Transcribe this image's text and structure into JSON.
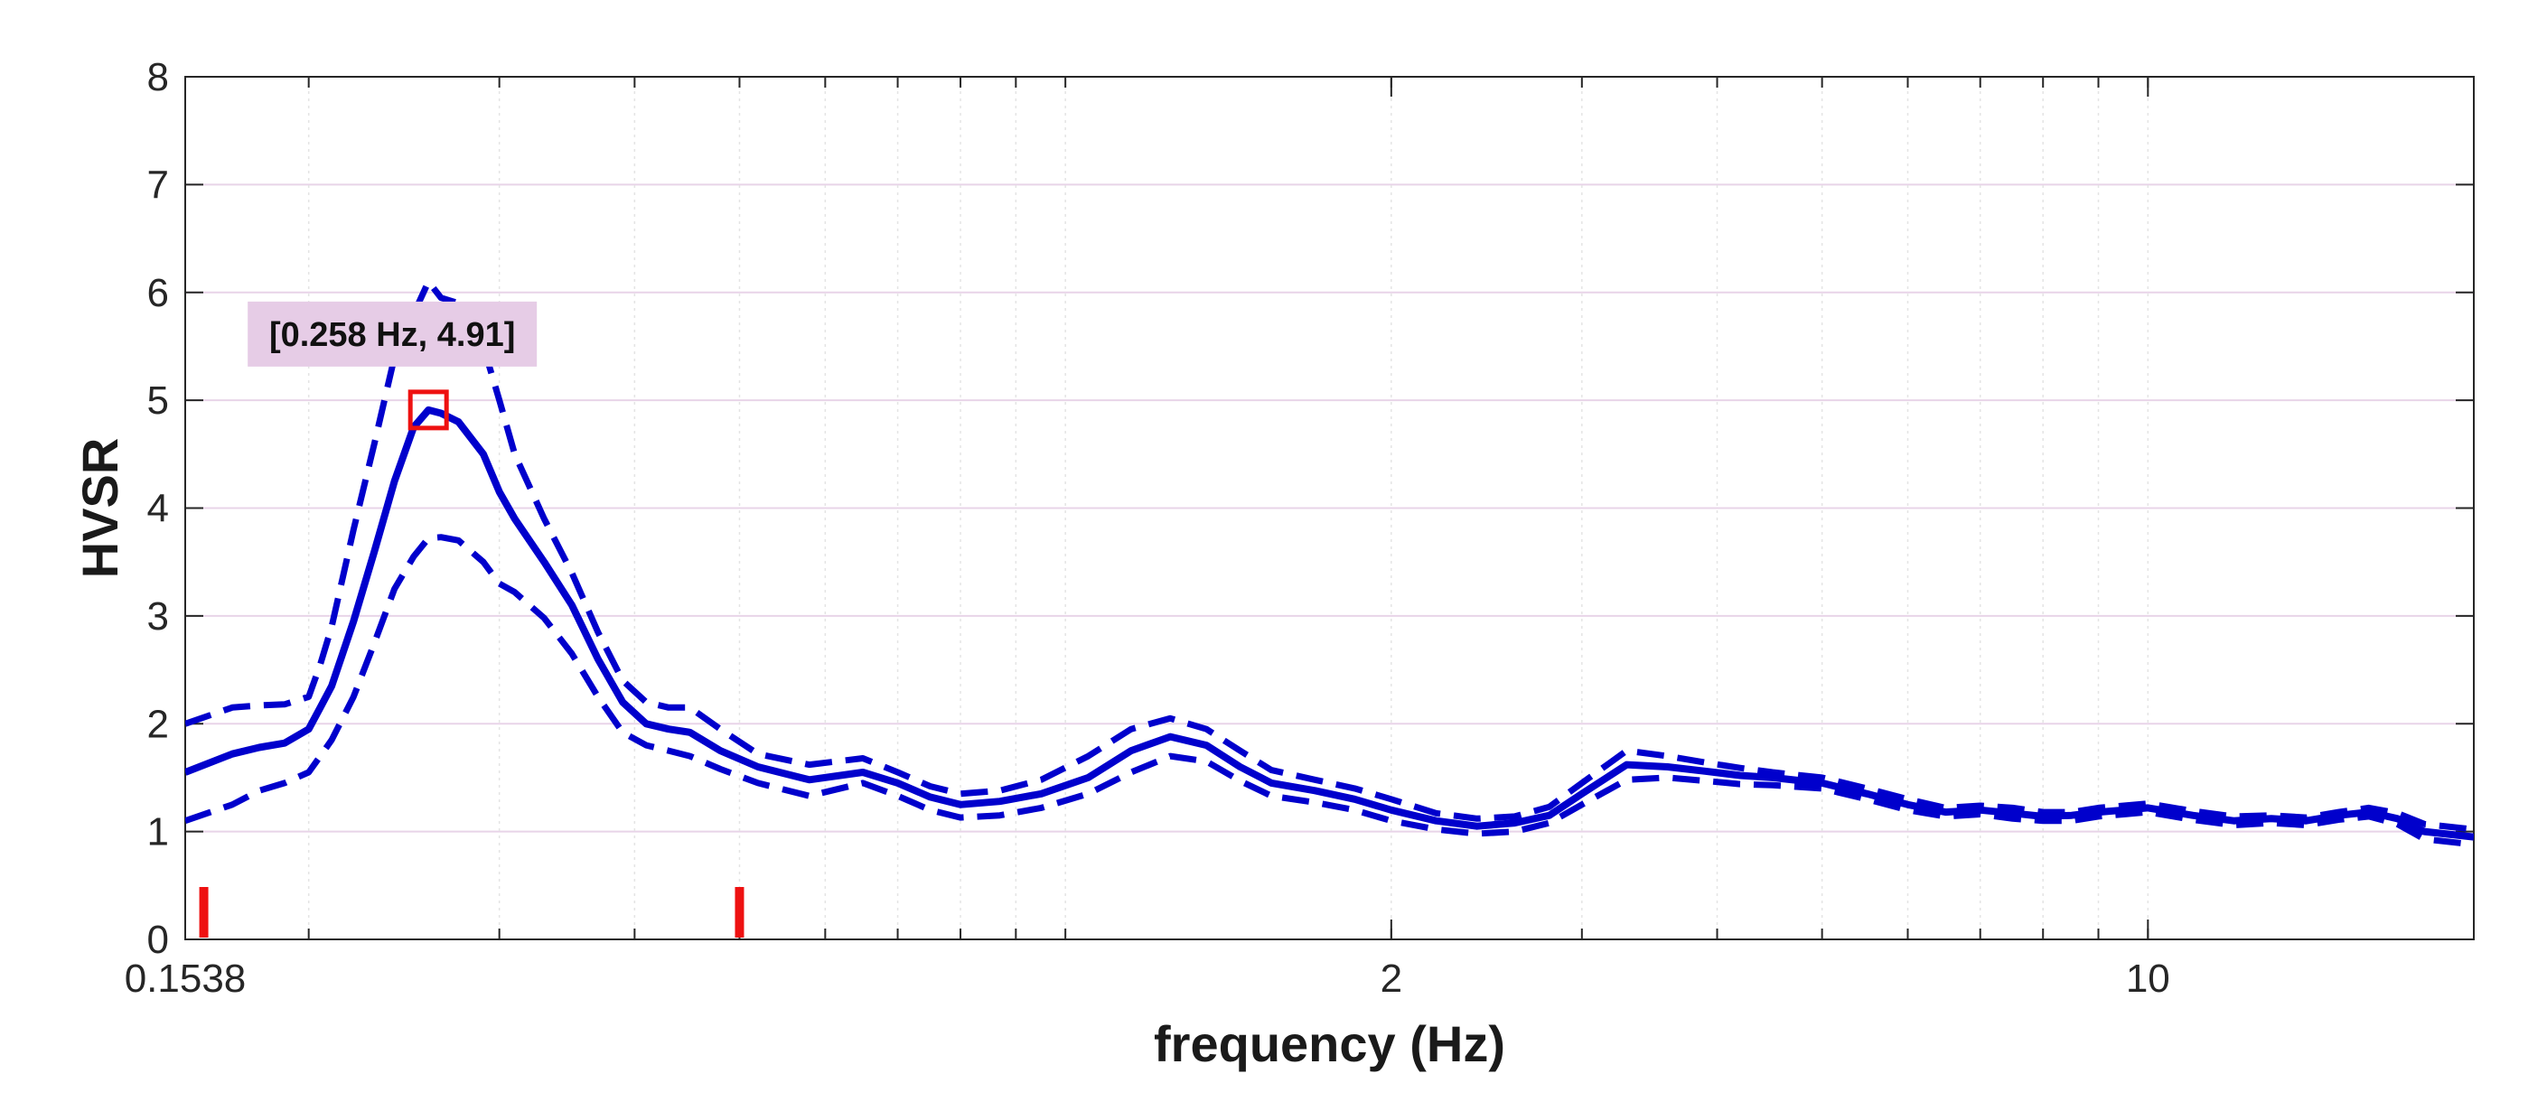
{
  "chart_data": {
    "type": "line",
    "title": "",
    "xlabel": "frequency (Hz)",
    "ylabel": "HVSR",
    "xscale": "log",
    "xlim": [
      0.1538,
      20
    ],
    "ylim": [
      0,
      8
    ],
    "grid": true,
    "xticks": [
      {
        "value": 0.1538,
        "label": "0.1538"
      },
      {
        "value": 2,
        "label": "2"
      },
      {
        "value": 10,
        "label": "10"
      }
    ],
    "yticks": [
      0,
      1,
      2,
      3,
      4,
      5,
      6,
      7,
      8
    ],
    "colors": {
      "series": "#0000cc",
      "marker": "#ee1111",
      "annotation_bg": "#e6cce6"
    },
    "series": [
      {
        "style": "solid",
        "x": [
          0.1538,
          0.17,
          0.18,
          0.19,
          0.2,
          0.205,
          0.21,
          0.22,
          0.23,
          0.24,
          0.25,
          0.258,
          0.265,
          0.275,
          0.29,
          0.3,
          0.31,
          0.33,
          0.35,
          0.37,
          0.39,
          0.41,
          0.43,
          0.45,
          0.48,
          0.52,
          0.58,
          0.65,
          0.7,
          0.75,
          0.8,
          0.87,
          0.95,
          1.05,
          1.15,
          1.25,
          1.35,
          1.45,
          1.55,
          1.7,
          1.85,
          2.0,
          2.2,
          2.4,
          2.6,
          2.8,
          3.0,
          3.3,
          3.6,
          3.9,
          4.2,
          4.5,
          5.0,
          5.5,
          6.0,
          6.5,
          7.0,
          7.5,
          8.0,
          8.5,
          9.0,
          9.5,
          10.0,
          11.0,
          12.0,
          13.0,
          14.0,
          15.0,
          16.0,
          17.0,
          18.0,
          20.0
        ],
        "y": [
          1.55,
          1.72,
          1.78,
          1.82,
          1.95,
          2.15,
          2.35,
          2.95,
          3.6,
          4.25,
          4.75,
          4.91,
          4.88,
          4.8,
          4.5,
          4.15,
          3.9,
          3.5,
          3.1,
          2.6,
          2.2,
          2.0,
          1.95,
          1.92,
          1.75,
          1.6,
          1.48,
          1.55,
          1.45,
          1.32,
          1.25,
          1.28,
          1.35,
          1.5,
          1.75,
          1.88,
          1.8,
          1.6,
          1.45,
          1.38,
          1.3,
          1.2,
          1.1,
          1.05,
          1.08,
          1.15,
          1.35,
          1.62,
          1.6,
          1.56,
          1.52,
          1.5,
          1.45,
          1.35,
          1.25,
          1.18,
          1.2,
          1.17,
          1.14,
          1.15,
          1.18,
          1.2,
          1.22,
          1.15,
          1.1,
          1.12,
          1.1,
          1.15,
          1.18,
          1.12,
          1.0,
          0.95
        ]
      },
      {
        "style": "dashed",
        "x": [
          0.1538,
          0.17,
          0.18,
          0.19,
          0.2,
          0.205,
          0.21,
          0.22,
          0.23,
          0.24,
          0.25,
          0.258,
          0.265,
          0.275,
          0.29,
          0.3,
          0.31,
          0.33,
          0.35,
          0.37,
          0.39,
          0.41,
          0.43,
          0.45,
          0.48,
          0.52,
          0.58,
          0.65,
          0.7,
          0.75,
          0.8,
          0.87,
          0.95,
          1.05,
          1.15,
          1.25,
          1.35,
          1.45,
          1.55,
          1.7,
          1.85,
          2.0,
          2.2,
          2.4,
          2.6,
          2.8,
          3.0,
          3.3,
          3.6,
          3.9,
          4.2,
          4.5,
          5.0,
          5.5,
          6.0,
          6.5,
          7.0,
          7.5,
          8.0,
          8.5,
          9.0,
          9.5,
          10.0,
          11.0,
          12.0,
          13.0,
          14.0,
          15.0,
          16.0,
          17.0,
          18.0,
          20.0
        ],
        "y": [
          2.0,
          2.15,
          2.17,
          2.18,
          2.25,
          2.55,
          2.9,
          3.8,
          4.6,
          5.4,
          5.8,
          6.1,
          5.95,
          5.9,
          5.5,
          5.0,
          4.5,
          3.9,
          3.4,
          2.85,
          2.4,
          2.2,
          2.15,
          2.15,
          1.95,
          1.72,
          1.62,
          1.68,
          1.55,
          1.42,
          1.35,
          1.38,
          1.48,
          1.7,
          1.95,
          2.05,
          1.95,
          1.75,
          1.57,
          1.48,
          1.4,
          1.3,
          1.17,
          1.12,
          1.14,
          1.23,
          1.45,
          1.75,
          1.7,
          1.64,
          1.59,
          1.55,
          1.5,
          1.4,
          1.3,
          1.22,
          1.24,
          1.22,
          1.18,
          1.18,
          1.22,
          1.24,
          1.26,
          1.19,
          1.14,
          1.15,
          1.13,
          1.18,
          1.22,
          1.17,
          1.07,
          1.02
        ]
      },
      {
        "style": "dashed",
        "x": [
          0.1538,
          0.17,
          0.18,
          0.19,
          0.2,
          0.205,
          0.21,
          0.22,
          0.23,
          0.24,
          0.25,
          0.258,
          0.265,
          0.275,
          0.29,
          0.3,
          0.31,
          0.33,
          0.35,
          0.37,
          0.39,
          0.41,
          0.43,
          0.45,
          0.48,
          0.52,
          0.58,
          0.65,
          0.7,
          0.75,
          0.8,
          0.87,
          0.95,
          1.05,
          1.15,
          1.25,
          1.35,
          1.45,
          1.55,
          1.7,
          1.85,
          2.0,
          2.2,
          2.4,
          2.6,
          2.8,
          3.0,
          3.3,
          3.6,
          3.9,
          4.2,
          4.5,
          5.0,
          5.5,
          6.0,
          6.5,
          7.0,
          7.5,
          8.0,
          8.5,
          9.0,
          9.5,
          10.0,
          11.0,
          12.0,
          13.0,
          14.0,
          15.0,
          16.0,
          17.0,
          18.0,
          20.0
        ],
        "y": [
          1.1,
          1.25,
          1.38,
          1.45,
          1.55,
          1.7,
          1.85,
          2.25,
          2.75,
          3.25,
          3.55,
          3.72,
          3.73,
          3.7,
          3.5,
          3.3,
          3.22,
          2.98,
          2.65,
          2.25,
          1.92,
          1.8,
          1.75,
          1.7,
          1.58,
          1.45,
          1.33,
          1.45,
          1.33,
          1.2,
          1.13,
          1.15,
          1.22,
          1.35,
          1.55,
          1.7,
          1.65,
          1.47,
          1.33,
          1.27,
          1.2,
          1.1,
          1.02,
          0.98,
          1.0,
          1.08,
          1.25,
          1.48,
          1.5,
          1.47,
          1.44,
          1.43,
          1.4,
          1.3,
          1.2,
          1.14,
          1.16,
          1.12,
          1.1,
          1.1,
          1.14,
          1.16,
          1.18,
          1.11,
          1.06,
          1.08,
          1.06,
          1.11,
          1.14,
          1.07,
          0.93,
          0.88
        ]
      }
    ],
    "peak_marker": {
      "x": 0.258,
      "y": 4.91
    },
    "annotations": [
      {
        "text": "[0.258 Hz, 4.91]",
        "x": 0.258,
        "y": 4.91
      }
    ],
    "window_markers": [
      {
        "x": 0.16
      },
      {
        "x": 0.5
      }
    ]
  }
}
